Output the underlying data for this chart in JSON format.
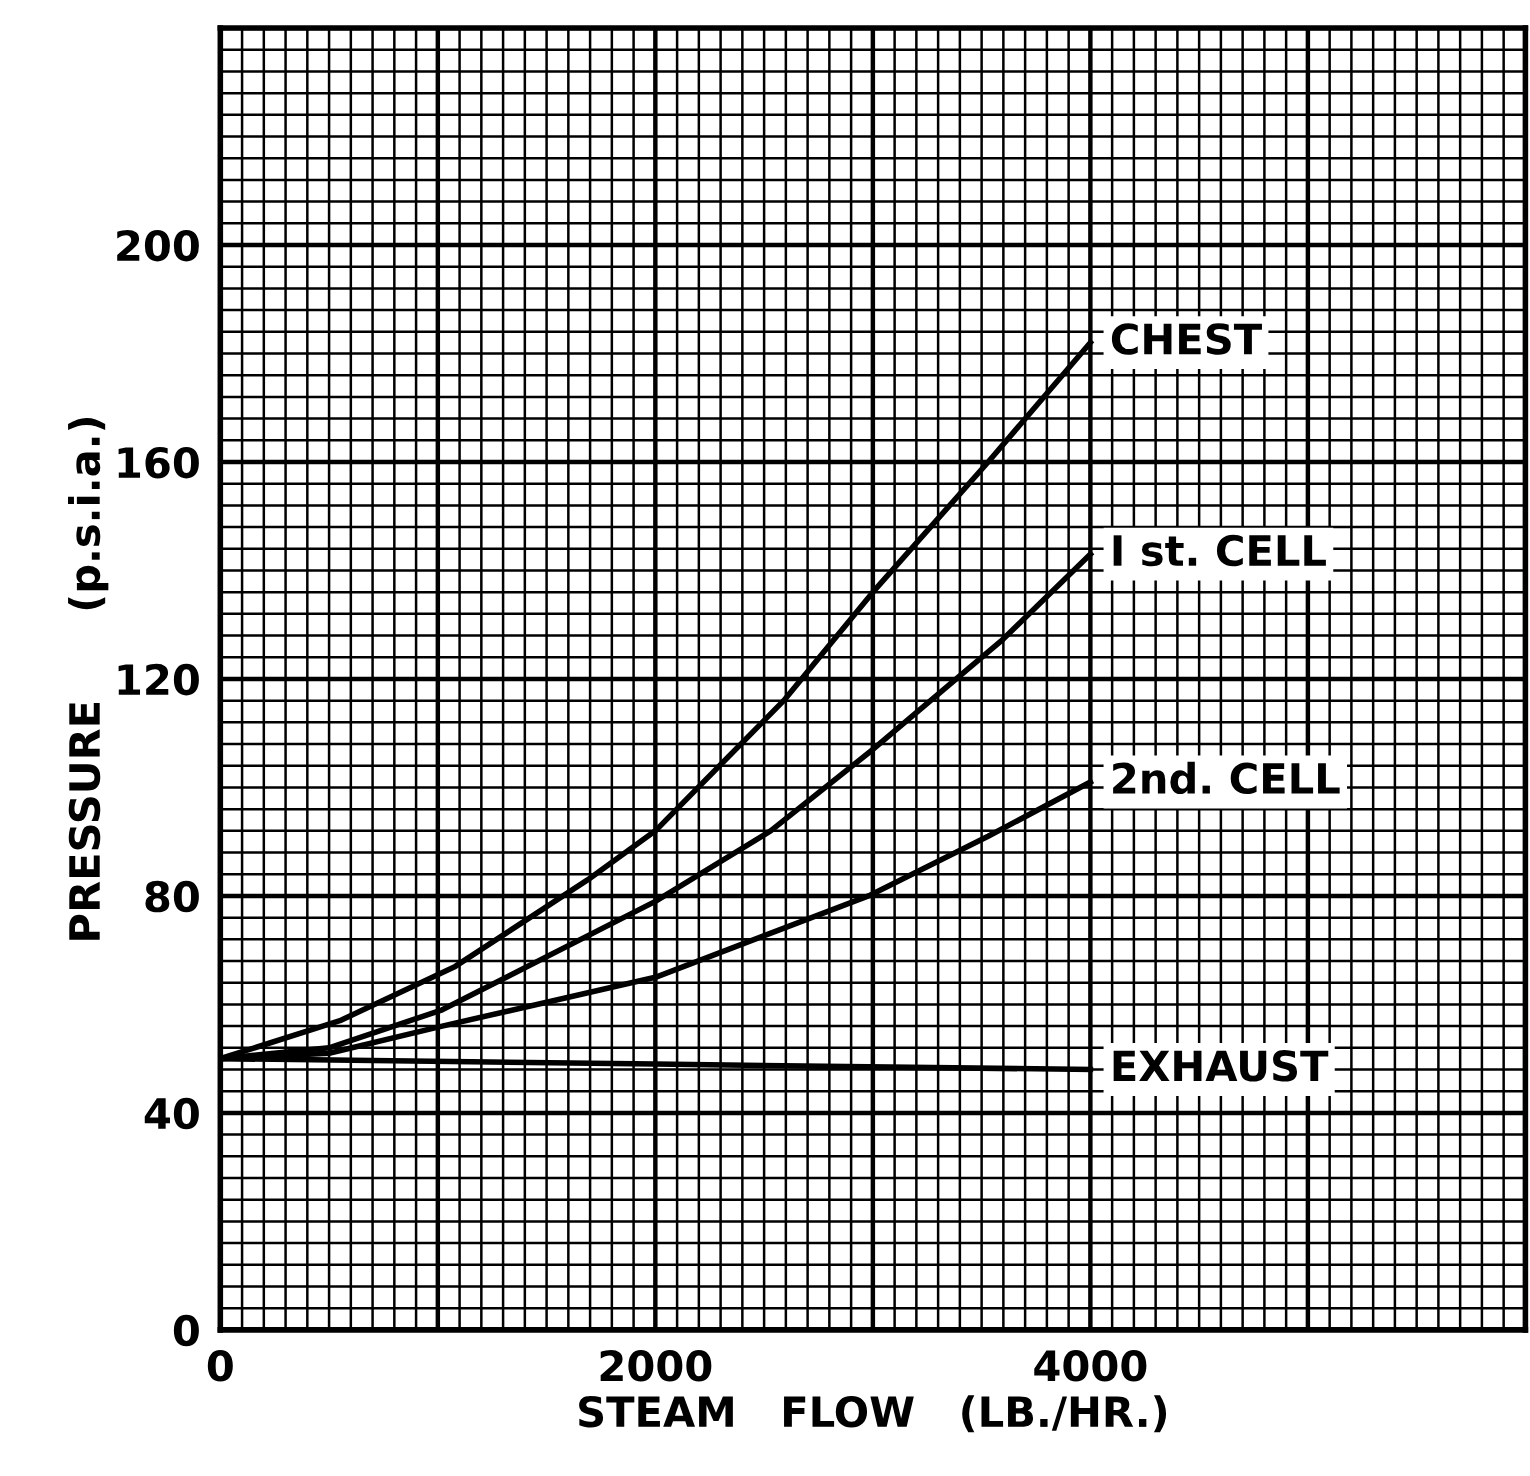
{
  "chart_data": {
    "type": "line",
    "xlabel": "STEAM   FLOW   (LB./HR.)",
    "ylabel": "PRESSURE      (p.s.i.a.)",
    "xlim": [
      0,
      6000
    ],
    "ylim": [
      0,
      240
    ],
    "xticks": [
      0,
      2000,
      4000
    ],
    "yticks": [
      0,
      40,
      80,
      120,
      160,
      200
    ],
    "grid": true,
    "legend": false,
    "marker": "none",
    "line_style": "solid",
    "series": [
      {
        "name": "CHEST",
        "color": "#000000",
        "x": [
          0,
          550,
          1080,
          1690,
          2000,
          2590,
          3000,
          3530,
          4000
        ],
        "values": [
          50,
          57,
          67,
          83,
          92,
          116,
          136,
          160,
          182
        ]
      },
      {
        "name": "I st. CELL",
        "color": "#000000",
        "x": [
          0,
          500,
          1020,
          2000,
          2530,
          3000,
          3590,
          4000
        ],
        "values": [
          50,
          52,
          59,
          79,
          92,
          107,
          127,
          143
        ]
      },
      {
        "name": "2nd. CELL",
        "color": "#000000",
        "x": [
          0,
          500,
          1020,
          2000,
          2980,
          3530,
          4000
        ],
        "values": [
          50,
          51,
          56,
          65,
          80,
          91,
          101
        ]
      },
      {
        "name": "EXHAUST",
        "color": "#000000",
        "x": [
          0,
          2000,
          4000
        ],
        "values": [
          50,
          49,
          48
        ]
      }
    ]
  }
}
